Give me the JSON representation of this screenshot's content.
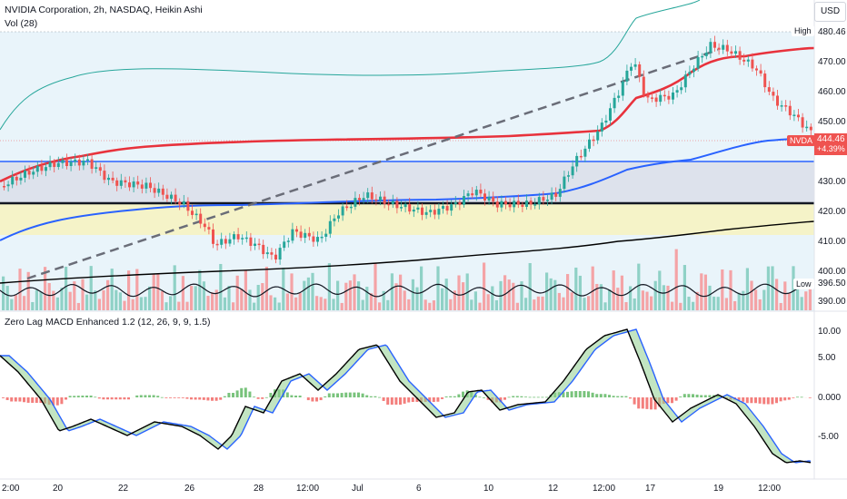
{
  "header": {
    "title": "NVIDIA Corporation, 2h, NASDAQ, Heikin Ashi",
    "volume_label": "Vol (28)",
    "indicator_label": "Zero Lag MACD Enhanced 1.2 (12, 26, 9, 9, 1.5)"
  },
  "currency_button": "USD",
  "price_axis": {
    "ticks": [
      "470.00",
      "460.00",
      "450.00",
      "430.00",
      "420.00",
      "410.00",
      "400.00",
      "390.00"
    ],
    "high": {
      "label": "High",
      "value": "480.46"
    },
    "low": {
      "label": "Low",
      "value": "396.50"
    },
    "symbol": "NVDA",
    "last_price": "444.46",
    "change": "+4.39%"
  },
  "macd_axis": {
    "ticks": [
      "10.00",
      "5.00",
      "0.000",
      "-5.00"
    ]
  },
  "time_axis": {
    "ticks": [
      "2:00",
      "20",
      "22",
      "26",
      "28",
      "12:00",
      "Jul",
      "6",
      "10",
      "12",
      "12:00",
      "17",
      "19",
      "12:00"
    ]
  },
  "colors": {
    "bull": "#26a69a",
    "bear": "#ef5350",
    "ma_red": "#e8323c",
    "ma_blue": "#2962ff",
    "ma_black": "#000000",
    "channel_green": "#26a69a",
    "dashed": "#6a6d78",
    "zone_gray": "#dfe4ee",
    "zone_yellow": "#f5f3c8",
    "zone_blue": "#e7f2f9"
  }
}
